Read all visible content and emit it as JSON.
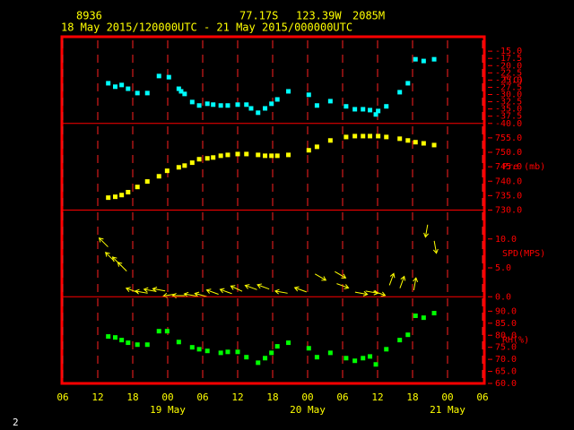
{
  "header": {
    "station": "8936",
    "lat": "77.17S",
    "lon": "123.39W",
    "elev": "2085M",
    "period": "18 May 2015/120000UTC - 21 May 2015/000000UTC"
  },
  "page_number": "2",
  "x_axis": {
    "xlim": [
      6,
      78
    ],
    "xticks": [
      {
        "value": 6,
        "label": "06"
      },
      12,
      18,
      {
        "value": 24,
        "label": "00"
      },
      {
        "value": 30,
        "label": "06"
      },
      {
        "value": 36,
        "label": "12"
      },
      {
        "value": 42,
        "label": "18"
      },
      {
        "value": 48,
        "label": "00"
      },
      {
        "value": 54,
        "label": "06"
      },
      {
        "value": 60,
        "label": "12"
      },
      {
        "value": 66,
        "label": "18"
      },
      {
        "value": 72,
        "label": "00"
      },
      {
        "value": 78,
        "label": "06"
      }
    ],
    "day_ticks": [
      {
        "value": 24,
        "label": "19 May"
      },
      {
        "value": 48,
        "label": "20 May"
      },
      {
        "value": 72,
        "label": "21 May"
      }
    ]
  },
  "chart_data": [
    {
      "type": "scatter",
      "label": "T(C)",
      "color": "#00ffff",
      "ylim": [
        -40,
        -10
      ],
      "yticks": [
        {
          "value": -15,
          "label": "-15.0"
        },
        {
          "value": -17.5,
          "label": "-17.5"
        },
        {
          "value": -20,
          "label": "-20.0"
        },
        {
          "value": -22.5,
          "label": "-22.5"
        },
        {
          "value": -25,
          "label": "-25.0"
        },
        {
          "value": -27.5,
          "label": "-27.5"
        },
        {
          "value": -30,
          "label": "-30.0"
        },
        {
          "value": -32.5,
          "label": "-32.5"
        },
        {
          "value": -35,
          "label": "-35.0"
        },
        {
          "value": -37.5,
          "label": "-37.5"
        },
        {
          "value": -40,
          "label": "-40.0"
        }
      ],
      "x": [
        13.8,
        15.0,
        16.1,
        17.2,
        18.8,
        20.5,
        22.5,
        24.2,
        25.9,
        26.3,
        26.9,
        28.2,
        29.4,
        30.8,
        31.8,
        33.1,
        34.3,
        36.0,
        37.5,
        38.3,
        39.5,
        40.7,
        41.8,
        42.8,
        44.7,
        48.2,
        49.6,
        51.9,
        54.6,
        56.1,
        57.5,
        58.7,
        59.7,
        60.1,
        61.5,
        63.8,
        65.2,
        66.5,
        67.9,
        69.7
      ],
      "values": [
        -26.1,
        -27.3,
        -26.7,
        -28.0,
        -29.5,
        -29.5,
        -23.6,
        -24.0,
        -28.0,
        -28.9,
        -29.8,
        -32.6,
        -33.8,
        -33.2,
        -33.5,
        -33.8,
        -33.8,
        -33.5,
        -33.5,
        -34.8,
        -36.3,
        -34.8,
        -33.2,
        -31.7,
        -28.9,
        -30.1,
        -33.8,
        -32.3,
        -34.1,
        -35.1,
        -35.1,
        -35.4,
        -36.9,
        -35.7,
        -34.1,
        -29.2,
        -26.1,
        -17.8,
        -18.4,
        -17.8
      ]
    },
    {
      "type": "scatter",
      "label": "Pre (mb)",
      "color": "#ffff00",
      "ylim": [
        730,
        760
      ],
      "yticks": [
        {
          "value": 730,
          "label": "730.0"
        },
        {
          "value": 735,
          "label": "735.0"
        },
        {
          "value": 740,
          "label": "740.0"
        },
        {
          "value": 745,
          "label": "745.0"
        },
        {
          "value": 750,
          "label": "750.0"
        },
        {
          "value": 755,
          "label": "755.0"
        }
      ],
      "x": [
        13.8,
        15.0,
        16.1,
        17.2,
        18.8,
        20.5,
        22.5,
        23.9,
        25.9,
        26.9,
        28.2,
        29.4,
        30.8,
        31.8,
        33.1,
        34.3,
        36.0,
        37.5,
        39.5,
        40.7,
        41.8,
        42.8,
        44.7,
        48.2,
        49.6,
        51.9,
        54.6,
        56.1,
        57.5,
        58.7,
        60.1,
        61.5,
        63.8,
        65.2,
        66.5,
        67.9,
        69.7
      ],
      "values": [
        734.3,
        734.6,
        735.2,
        736.2,
        738.0,
        739.9,
        741.7,
        743.6,
        744.8,
        745.4,
        746.4,
        747.6,
        747.9,
        748.2,
        748.8,
        749.1,
        749.4,
        749.4,
        749.1,
        748.8,
        748.8,
        748.8,
        749.1,
        750.7,
        751.9,
        754.1,
        755.3,
        755.6,
        755.6,
        755.6,
        755.6,
        755.3,
        754.7,
        754.1,
        753.5,
        753.1,
        752.5
      ]
    },
    {
      "type": "vector",
      "label": "SPD(MPS)",
      "color": "#ffff00",
      "ylim": [
        0,
        15
      ],
      "yticks": [
        {
          "value": 0,
          "label": "0.0"
        },
        {
          "value": 5,
          "label": "5.0"
        },
        {
          "value": 10,
          "label": "10.0"
        }
      ],
      "x": [
        13.0,
        14.1,
        15.3,
        16.2,
        17.9,
        19.5,
        21.0,
        22.5,
        24.3,
        25.9,
        27.9,
        29.7,
        31.7,
        34.0,
        35.8,
        38.3,
        40.4,
        43.5,
        46.8,
        50.2,
        53.6,
        54.0,
        57.2,
        59.0,
        60.3,
        62.4,
        64.2,
        66.4,
        68.4,
        69.9
      ],
      "values": [
        9.4,
        6.9,
        6.1,
        5.2,
        1.1,
        0.8,
        1.1,
        1.2,
        0.3,
        0.2,
        0.3,
        0.3,
        0.8,
        0.9,
        1.4,
        1.6,
        1.7,
        0.8,
        1.2,
        3.4,
        3.8,
        1.9,
        0.6,
        0.8,
        0.6,
        3.0,
        2.5,
        2.2,
        11.4,
        8.6
      ],
      "directions": [
        315,
        315,
        315,
        315,
        290,
        280,
        280,
        280,
        260,
        270,
        280,
        285,
        290,
        290,
        295,
        290,
        290,
        280,
        290,
        120,
        120,
        110,
        100,
        100,
        110,
        20,
        20,
        10,
        190,
        170
      ]
    },
    {
      "type": "scatter",
      "label": "RH(%)",
      "color": "#00ff00",
      "ylim": [
        60,
        96
      ],
      "yticks": [
        {
          "value": 60,
          "label": "60.0"
        },
        {
          "value": 65,
          "label": "65.0"
        },
        {
          "value": 70,
          "label": "70.0"
        },
        {
          "value": 75,
          "label": "75.0"
        },
        {
          "value": 80,
          "label": "80.0"
        },
        {
          "value": 85,
          "label": "85.0"
        },
        {
          "value": 90,
          "label": "90.0"
        }
      ],
      "x": [
        13.8,
        15.0,
        16.1,
        17.2,
        18.8,
        20.5,
        22.5,
        23.9,
        25.9,
        28.2,
        29.4,
        30.8,
        33.1,
        34.3,
        36.0,
        37.5,
        39.5,
        40.7,
        41.8,
        42.8,
        44.7,
        48.2,
        49.6,
        51.9,
        54.6,
        56.1,
        57.5,
        58.7,
        59.7,
        61.5,
        63.8,
        65.2,
        66.5,
        67.9,
        69.7
      ],
      "values": [
        79.5,
        79.1,
        78.0,
        76.9,
        76.1,
        76.1,
        81.7,
        81.7,
        77.2,
        75.0,
        74.2,
        73.5,
        72.7,
        73.1,
        73.1,
        70.9,
        68.6,
        70.5,
        72.7,
        75.4,
        76.9,
        74.6,
        70.9,
        72.7,
        70.5,
        69.4,
        70.5,
        71.2,
        67.9,
        74.2,
        78.0,
        80.2,
        88.1,
        87.3,
        89.2
      ]
    }
  ]
}
